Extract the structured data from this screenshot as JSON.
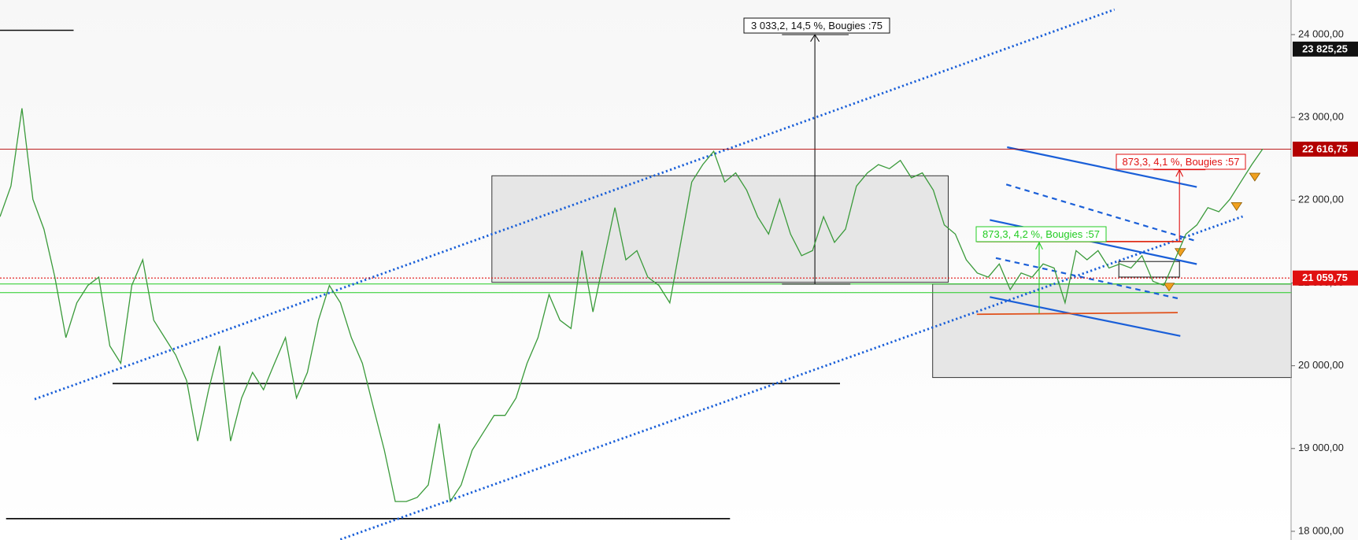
{
  "chart_data": {
    "type": "line",
    "color": "#3a9a3a",
    "ylim": [
      17895,
      24418
    ],
    "yticks": [
      {
        "value": 18000,
        "label": "18 000,00"
      },
      {
        "value": 19000,
        "label": "19 000,00"
      },
      {
        "value": 20000,
        "label": "20 000,00"
      },
      {
        "value": 21000,
        "label": "21 000,00"
      },
      {
        "value": 22000,
        "label": "22 000,00"
      },
      {
        "value": 23000,
        "label": "23 000,00"
      },
      {
        "value": 24000,
        "label": "24 000,00"
      }
    ],
    "price_markers": [
      {
        "value": 23825.25,
        "label": "23 825,25",
        "color": "#111111"
      },
      {
        "value": 22616.75,
        "label": "22 616,75",
        "color": "#b30000"
      },
      {
        "value": 21059.75,
        "label": "21 059,75",
        "color": "#e01010"
      }
    ],
    "annotations": [
      {
        "text": "3 033,2, 14,5 %, Bougies :75",
        "color": "#111111"
      },
      {
        "text": "873,3, 4,2 %, Bougies :57",
        "color": "#22cc22"
      },
      {
        "text": "873,3, 4,1 %, Bougies :57",
        "color": "#e01010"
      }
    ],
    "values": [
      21800,
      22170,
      23110,
      22010,
      21650,
      21070,
      20340,
      20760,
      20970,
      21070,
      20240,
      20030,
      20970,
      21280,
      20550,
      20340,
      20130,
      19820,
      19090,
      19710,
      20240,
      19090,
      19610,
      19920,
      19710,
      20030,
      20340,
      19610,
      19920,
      20550,
      20970,
      20760,
      20340,
      20030,
      19500,
      18980,
      18360,
      18360,
      18410,
      18560,
      19300,
      18360,
      18560,
      18980,
      19190,
      19400,
      19400,
      19610,
      20030,
      20340,
      20860,
      20550,
      20450,
      21390,
      20650,
      21280,
      21910,
      21280,
      21390,
      21070,
      20970,
      20760,
      21490,
      22220,
      22430,
      22590,
      22220,
      22330,
      22120,
      21800,
      21590,
      22010,
      21590,
      21330,
      21390,
      21800,
      21490,
      21650,
      22170,
      22330,
      22430,
      22380,
      22480,
      22270,
      22330,
      22120,
      21700,
      21590,
      21280,
      21120,
      21070,
      21230,
      20920,
      21120,
      21070,
      21230,
      21180,
      20760,
      21390,
      21280,
      21390,
      21180,
      21230,
      21180,
      21330,
      21020,
      20970,
      21280,
      21590,
      21700,
      21910,
      21860,
      22010,
      22220,
      22430,
      22620
    ]
  }
}
